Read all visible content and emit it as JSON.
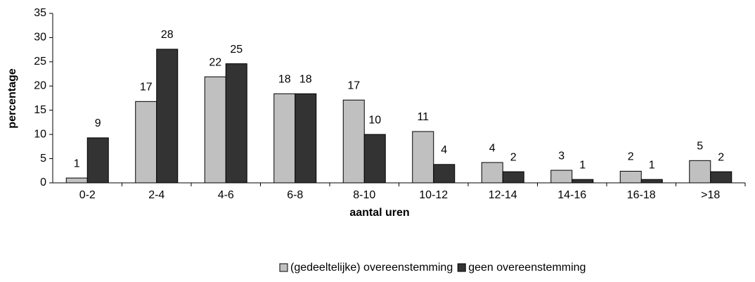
{
  "chart_data": {
    "type": "bar",
    "xlabel": "aantal uren",
    "ylabel": "percentage",
    "categories": [
      "0-2",
      "2-4",
      "4-6",
      "6-8",
      "8-10",
      "10-12",
      "12-14",
      "14-16",
      "16-18",
      ">18"
    ],
    "series": [
      {
        "name": "(gedeeltelijke) overeenstemming",
        "color": "#c0c0c0",
        "values": [
          1.0,
          16.8,
          21.9,
          18.4,
          17.1,
          10.6,
          4.2,
          2.6,
          2.4,
          4.6
        ],
        "value_labels": [
          "1",
          "17",
          "22",
          "18",
          "17",
          "11",
          "4",
          "3",
          "2",
          "5"
        ]
      },
      {
        "name": "geen overeenstemming",
        "color": "#333333",
        "values": [
          9.3,
          27.6,
          24.6,
          18.4,
          10.0,
          3.8,
          2.3,
          0.7,
          0.7,
          2.3
        ],
        "value_labels": [
          "9",
          "28",
          "25",
          "18",
          "10",
          "4",
          "2",
          "1",
          "1",
          "2"
        ]
      }
    ],
    "ylim": [
      0,
      35
    ],
    "yticks": [
      0,
      5,
      10,
      15,
      20,
      25,
      30,
      35
    ],
    "legend": "bottom"
  }
}
